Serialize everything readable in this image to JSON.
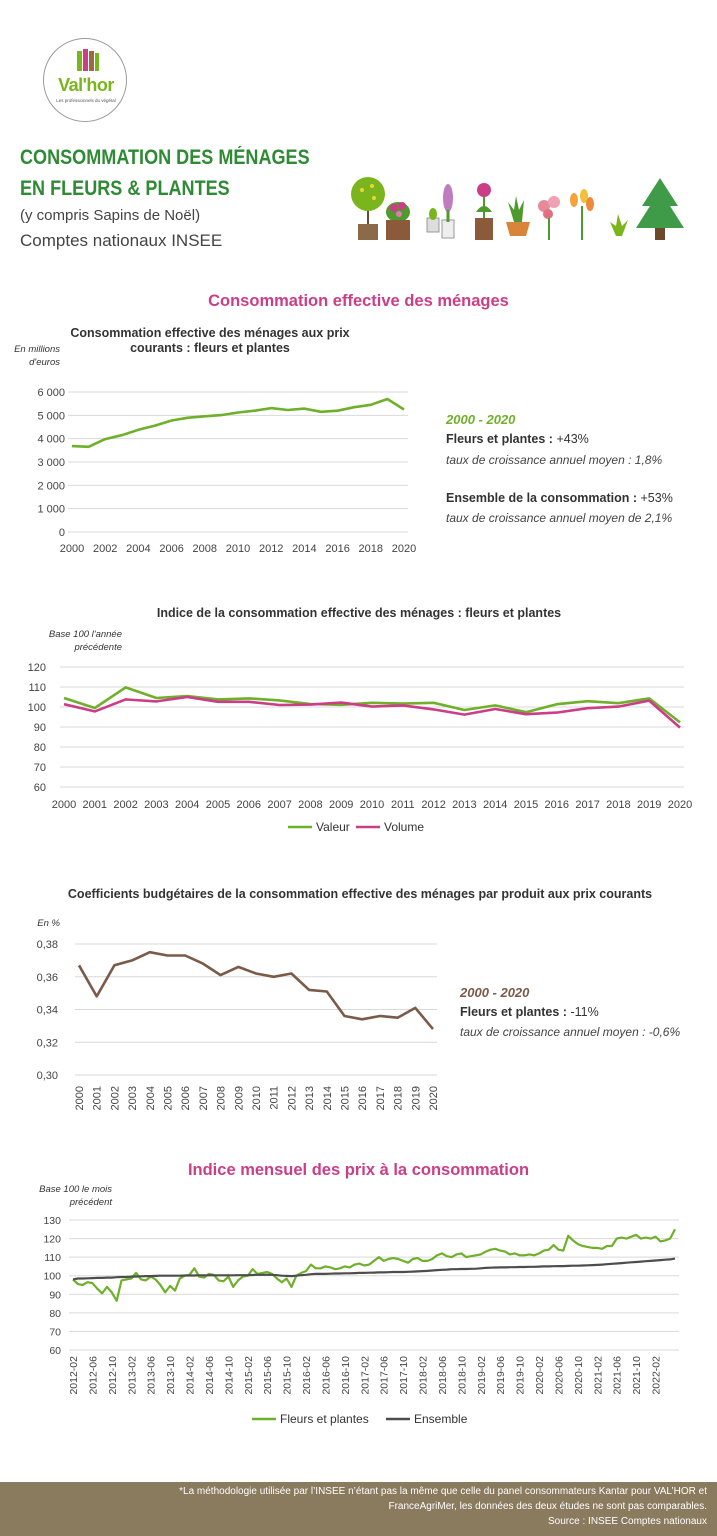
{
  "logo": {
    "name": "Val'hor",
    "tagline": "Les professionnels du végétal"
  },
  "header": {
    "title_line1": "CONSOMMATION DES MÉNAGES",
    "title_line2": "EN FLEURS & PLANTES",
    "subtitle": "(y compris Sapins de Noël)",
    "source_line": "Comptes nationaux INSEE"
  },
  "colors": {
    "green": "#6fb02a",
    "pink": "#cc3d88",
    "brown": "#7a5a48",
    "dark_grey": "#4d4d4d",
    "title_green": "#2f8a34",
    "footer": "#8a7a5e"
  },
  "section1": {
    "title": "Consommation effective des ménages",
    "annotation": {
      "period": "2000 - 2020",
      "line1_label": "Fleurs et plantes :",
      "line1_value": " +43%",
      "line2": "taux de croissance annuel moyen : 1,8%",
      "line3_label": "Ensemble de la consommation :",
      "line3_value": " +53%",
      "line4": "taux de croissance annuel moyen de 2,1%"
    }
  },
  "section3": {
    "annotation": {
      "period": "2000 - 2020",
      "line1_label": "Fleurs et plantes :",
      "line1_value": " -11%",
      "line2": "taux de croissance annuel moyen : -0,6%"
    }
  },
  "section4": {
    "title": "Indice mensuel des prix à la consommation"
  },
  "footer": {
    "line1": "*La méthodologie utilisée par l’INSEE n’étant pas la même que celle du panel consommateurs Kantar pour VAL’HOR et",
    "line2": "FranceAgriMer, les données des deux études ne sont pas comparables.",
    "line3": "Source : INSEE Comptes nationaux"
  },
  "chart_data": [
    {
      "type": "line",
      "title": "Consommation effective des ménages aux prix courants : fleurs et plantes",
      "title_lines": [
        "Consommation effective des ménages aux prix",
        "courants : fleurs et plantes"
      ],
      "ylabel_lines": [
        "En millions",
        "d'euros"
      ],
      "x": [
        2000,
        2001,
        2002,
        2003,
        2004,
        2005,
        2006,
        2007,
        2008,
        2009,
        2010,
        2011,
        2012,
        2013,
        2014,
        2015,
        2016,
        2017,
        2018,
        2019,
        2020
      ],
      "x_tick_labels": [
        "2000",
        "2002",
        "2004",
        "2006",
        "2008",
        "2010",
        "2012",
        "2014",
        "2016",
        "2018",
        "2020"
      ],
      "ylim": [
        0,
        6000
      ],
      "y_ticks": [
        0,
        1000,
        2000,
        3000,
        4000,
        5000,
        6000
      ],
      "y_tick_labels": [
        "0",
        "1 000",
        "2 000",
        "3 000",
        "4 000",
        "5 000",
        "6 000"
      ],
      "grid": true,
      "series": [
        {
          "values": [
            3680,
            3650,
            3980,
            4150,
            4380,
            4560,
            4780,
            4900,
            4960,
            5010,
            5120,
            5200,
            5310,
            5230,
            5290,
            5150,
            5200,
            5350,
            5450,
            5700,
            5250
          ],
          "color": "#6fb02a"
        }
      ]
    },
    {
      "type": "line",
      "title": "Indice de la consommation effective des ménages : fleurs et plantes",
      "ylabel_lines": [
        "Base 100 l'année",
        "précédente"
      ],
      "x": [
        "2000",
        "2001",
        "2002",
        "2003",
        "2004",
        "2005",
        "2006",
        "2007",
        "2008",
        "2009",
        "2010",
        "2011",
        "2012",
        "2013",
        "2014",
        "2015",
        "2016",
        "2017",
        "2018",
        "2019",
        "2020"
      ],
      "ylim": [
        60,
        120
      ],
      "y_ticks": [
        60,
        70,
        80,
        90,
        100,
        110,
        120
      ],
      "grid": true,
      "legend": "bottom",
      "series": [
        {
          "name": "Valeur",
          "color": "#6fb02a",
          "values": [
            104.5,
            99.5,
            109.8,
            104.5,
            105.5,
            103.8,
            104.3,
            103.3,
            101.5,
            101.1,
            102.1,
            101.7,
            102.1,
            98.5,
            100.8,
            97.4,
            101.4,
            102.9,
            101.9,
            104.3,
            92.3
          ]
        },
        {
          "name": "Volume",
          "color": "#cc3d88",
          "values": [
            101.4,
            97.8,
            103.8,
            102.8,
            105.0,
            102.6,
            102.6,
            101.0,
            101.2,
            102.2,
            100.2,
            100.8,
            98.8,
            96.2,
            99.0,
            96.4,
            97.2,
            99.4,
            100.2,
            103.2,
            89.7
          ]
        }
      ]
    },
    {
      "type": "line",
      "title": "Coefficients budgétaires de la consommation effective des ménages par produit aux prix courants",
      "ylabel_lines": [
        "En %"
      ],
      "x": [
        "2000",
        "2001",
        "2002",
        "2003",
        "2004",
        "2005",
        "2006",
        "2007",
        "2008",
        "2009",
        "2010",
        "2011",
        "2012",
        "2013",
        "2014",
        "2015",
        "2016",
        "2017",
        "2018",
        "2019",
        "2020"
      ],
      "ylim": [
        0.3,
        0.38
      ],
      "y_ticks": [
        0.3,
        0.32,
        0.34,
        0.36,
        0.38
      ],
      "y_tick_labels": [
        "0,30",
        "0,32",
        "0,34",
        "0,36",
        "0,38"
      ],
      "grid": true,
      "series": [
        {
          "color": "#7a5a48",
          "values": [
            0.367,
            0.348,
            0.367,
            0.37,
            0.375,
            0.373,
            0.373,
            0.368,
            0.361,
            0.366,
            0.362,
            0.36,
            0.362,
            0.352,
            0.351,
            0.336,
            0.334,
            0.336,
            0.335,
            0.341,
            0.328
          ]
        }
      ]
    },
    {
      "type": "line",
      "title": "Indice mensuel des prix à la consommation",
      "ylabel_lines": [
        "Base 100 le mois",
        "précédent"
      ],
      "x_start": "2012-02",
      "x_tick_labels": [
        "2012-02",
        "2012-06",
        "2012-10",
        "2013-02",
        "2013-06",
        "2013-10",
        "2014-02",
        "2014-06",
        "2014-10",
        "2015-02",
        "2015-06",
        "2015-10",
        "2016-02",
        "2016-06",
        "2016-10",
        "2017-02",
        "2017-06",
        "2017-10",
        "2018-02",
        "2018-06",
        "2018-10",
        "2019-02",
        "2019-06",
        "2019-10",
        "2020-02",
        "2020-06",
        "2020-10",
        "2021-02",
        "2021-06",
        "2021-10",
        "2022-02"
      ],
      "ylim": [
        60,
        130
      ],
      "y_ticks": [
        60,
        70,
        80,
        90,
        100,
        110,
        120,
        130
      ],
      "grid": true,
      "legend": "bottom",
      "series": [
        {
          "name": "Fleurs et plantes",
          "color": "#6fb02a",
          "values": [
            98.0,
            95.5,
            95.0,
            96.5,
            96.0,
            93.0,
            90.5,
            94.0,
            91.0,
            86.5,
            97.5,
            98.0,
            98.5,
            101.5,
            98.0,
            97.5,
            99.5,
            98.0,
            95.0,
            91.0,
            94.5,
            92.0,
            98.5,
            100.0,
            100.5,
            104.0,
            99.5,
            99.0,
            101.0,
            100.5,
            97.5,
            97.0,
            99.5,
            94.0,
            97.5,
            99.5,
            100.0,
            103.5,
            101.0,
            101.5,
            102.0,
            101.0,
            98.5,
            96.5,
            98.5,
            94.0,
            100.0,
            101.5,
            102.5,
            106.0,
            104.0,
            104.0,
            105.0,
            104.5,
            103.5,
            104.0,
            105.0,
            104.5,
            106.0,
            106.5,
            105.5,
            106.0,
            108.0,
            110.0,
            108.0,
            109.0,
            109.5,
            109.0,
            108.0,
            107.0,
            109.0,
            109.5,
            108.0,
            108.0,
            109.0,
            111.0,
            112.0,
            110.5,
            110.0,
            111.5,
            112.0,
            110.0,
            110.5,
            111.0,
            111.5,
            113.0,
            114.0,
            114.5,
            113.5,
            113.0,
            111.5,
            112.0,
            111.0,
            111.0,
            111.5,
            111.0,
            112.0,
            113.5,
            114.0,
            116.5,
            114.0,
            113.5,
            121.5,
            119.0,
            117.0,
            116.0,
            115.5,
            115.0,
            115.0,
            114.5,
            116.0,
            116.0,
            120.0,
            120.5,
            120.0,
            121.0,
            122.0,
            120.0,
            120.5,
            120.0,
            121.0,
            118.5,
            119.0,
            120.0,
            125.0
          ]
        },
        {
          "name": "Ensemble",
          "color": "#4d4d4d",
          "values": [
            98.0,
            98.5,
            98.5,
            98.6,
            98.7,
            98.8,
            98.8,
            99.0,
            99.0,
            99.2,
            99.3,
            99.3,
            99.5,
            99.6,
            99.7,
            99.8,
            99.8,
            99.9,
            100.0,
            100.0,
            100.0,
            100.0,
            100.0,
            100.1,
            100.1,
            100.1,
            100.2,
            100.2,
            100.2,
            100.2,
            100.2,
            100.2,
            100.2,
            100.2,
            100.3,
            100.3,
            100.3,
            100.4,
            100.5,
            100.5,
            100.5,
            100.5,
            100.3,
            100.0,
            99.9,
            99.8,
            100.0,
            100.3,
            100.5,
            100.8,
            101.0,
            101.0,
            101.0,
            101.1,
            101.2,
            101.2,
            101.3,
            101.3,
            101.4,
            101.5,
            101.5,
            101.6,
            101.7,
            101.8,
            101.8,
            101.9,
            102.0,
            102.0,
            102.0,
            102.1,
            102.2,
            102.3,
            102.5,
            102.6,
            102.8,
            103.0,
            103.2,
            103.3,
            103.5,
            103.5,
            103.6,
            103.6,
            103.7,
            103.8,
            104.0,
            104.2,
            104.3,
            104.4,
            104.5,
            104.5,
            104.6,
            104.6,
            104.7,
            104.7,
            104.8,
            104.8,
            104.9,
            105.0,
            105.0,
            105.1,
            105.2,
            105.2,
            105.3,
            105.4,
            105.4,
            105.5,
            105.6,
            105.7,
            105.8,
            106.0,
            106.2,
            106.4,
            106.6,
            106.8,
            107.0,
            107.2,
            107.4,
            107.6,
            107.8,
            108.0,
            108.2,
            108.4,
            108.6,
            108.8,
            109.2
          ]
        }
      ]
    }
  ]
}
